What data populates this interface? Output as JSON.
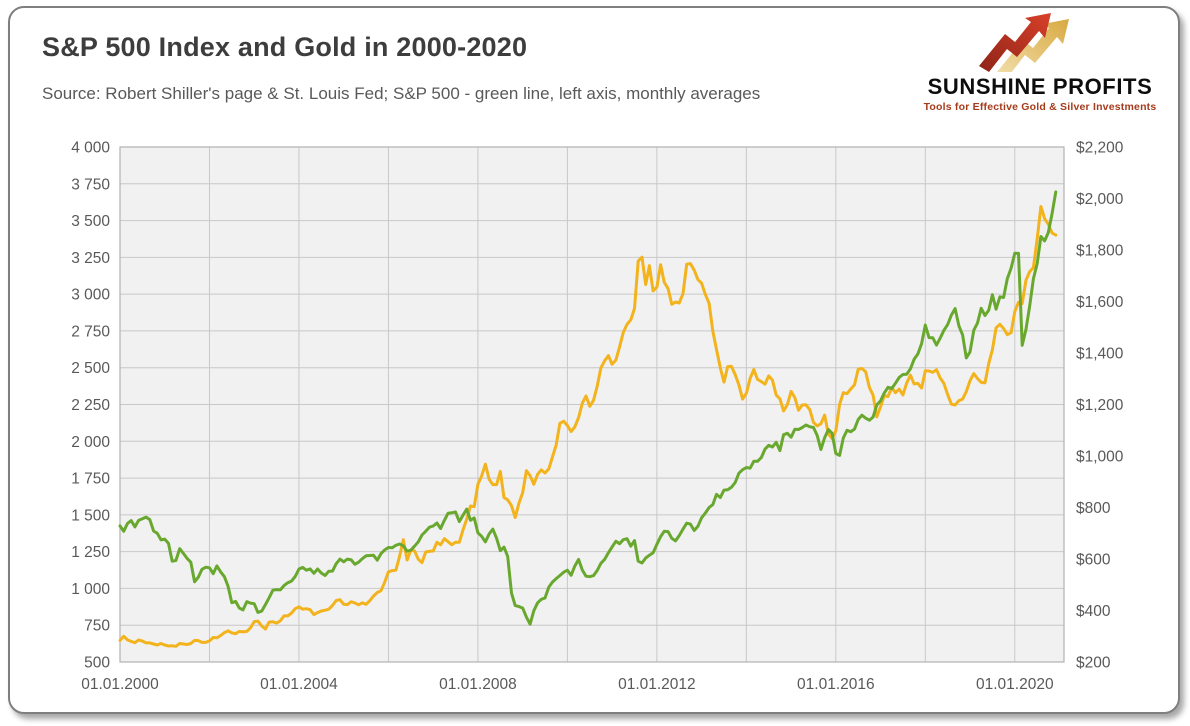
{
  "header": {
    "title": "S&P 500 Index and Gold in 2000-2020",
    "subtitle": "Source: Robert Shiller's page & St. Louis Fed; S&P 500 - green line, left axis, monthly averages"
  },
  "logo": {
    "brand": "SUNSHINE PROFITS",
    "tagline": "Tools for Effective Gold & Silver Investments",
    "arrow_red": "#c2331f",
    "arrow_gold_light": "#f2dfae",
    "arrow_gold_dark": "#d9a940"
  },
  "chart_data": {
    "type": "line",
    "title": "S&P 500 Index and Gold in 2000-2020",
    "legend": "none",
    "grid": true,
    "plot_bg": "#f1f1f1",
    "grid_color": "#c8c8c8",
    "plot_border_color": "#b2b2b2",
    "axis_text_color": "#595959",
    "x_axis": {
      "min_year": 2000,
      "max_year": 2021.1,
      "tick_years": [
        2000,
        2004,
        2008,
        2012,
        2016,
        2020
      ],
      "tick_labels": [
        "01.01.2000",
        "01.01.2004",
        "01.01.2008",
        "01.01.2012",
        "01.01.2016",
        "01.01.2020"
      ],
      "gridline_start_year": 2000,
      "gridline_every_years": 2,
      "gridline_end_year": 2020
    },
    "left_axis": {
      "min": 500,
      "max": 4000,
      "tick_step": 250,
      "tick_labels": [
        "4 000",
        "3 750",
        "3 500",
        "3 250",
        "3 000",
        "2 750",
        "2 500",
        "2 250",
        "2 000",
        "1 750",
        "1 500",
        "1 250",
        "1 000",
        "750",
        "500"
      ]
    },
    "right_axis": {
      "min": 200,
      "max": 2200,
      "tick_step": 200,
      "tick_labels": [
        "$2,200",
        "$2,000",
        "$1,800",
        "$1,600",
        "$1,400",
        "$1,200",
        "$1,000",
        "$800",
        "$600",
        "$400",
        "$200"
      ]
    },
    "start_year": 2000,
    "frequency": "monthly",
    "series": [
      {
        "name": "Gold",
        "axis": "right",
        "color": "#f2b31c",
        "values": [
          284,
          300,
          286,
          280,
          275,
          286,
          281,
          274,
          274,
          270,
          266,
          272,
          266,
          262,
          263,
          261,
          272,
          270,
          268,
          272,
          284,
          283,
          276,
          276,
          282,
          295,
          294,
          303,
          314,
          321,
          313,
          310,
          319,
          317,
          319,
          333,
          357,
          359,
          340,
          328,
          355,
          356,
          351,
          360,
          379,
          379,
          390,
          407,
          414,
          405,
          407,
          403,
          384,
          392,
          398,
          401,
          405,
          420,
          439,
          442,
          424,
          423,
          434,
          429,
          422,
          430,
          424,
          438,
          456,
          470,
          477,
          510,
          550,
          555,
          557,
          611,
          675,
          596,
          634,
          632,
          599,
          586,
          627,
          630,
          631,
          665,
          655,
          679,
          667,
          655,
          665,
          665,
          713,
          754,
          806,
          803,
          890,
          922,
          968,
          910,
          889,
          889,
          940,
          839,
          830,
          807,
          761,
          816,
          858,
          943,
          924,
          890,
          929,
          946,
          934,
          950,
          997,
          1043,
          1127,
          1135,
          1118,
          1095,
          1113,
          1149,
          1205,
          1233,
          1193,
          1216,
          1271,
          1342,
          1370,
          1390,
          1356,
          1373,
          1424,
          1480,
          1511,
          1529,
          1573,
          1757,
          1772,
          1666,
          1739,
          1641,
          1656,
          1743,
          1674,
          1650,
          1589,
          1598,
          1594,
          1630,
          1745,
          1747,
          1722,
          1685,
          1671,
          1628,
          1593,
          1485,
          1414,
          1343,
          1287,
          1347,
          1348,
          1316,
          1276,
          1221,
          1244,
          1301,
          1336,
          1298,
          1289,
          1279,
          1311,
          1295,
          1237,
          1222,
          1175,
          1200,
          1251,
          1227,
          1178,
          1198,
          1199,
          1181,
          1130,
          1117,
          1125,
          1159,
          1086,
          1068,
          1097,
          1200,
          1246,
          1242,
          1260,
          1276,
          1337,
          1340,
          1327,
          1266,
          1236,
          1152,
          1192,
          1234,
          1231,
          1266,
          1246,
          1260,
          1237,
          1283,
          1314,
          1280,
          1282,
          1264,
          1331,
          1330,
          1325,
          1335,
          1303,
          1282,
          1238,
          1201,
          1198,
          1215,
          1221,
          1250,
          1292,
          1320,
          1301,
          1286,
          1284,
          1359,
          1413,
          1498,
          1511,
          1495,
          1471,
          1479,
          1561,
          1597,
          1592,
          1683,
          1716,
          1732,
          1843,
          1969,
          1922,
          1900,
          1866,
          1858
        ]
      },
      {
        "name": "S&P 500",
        "axis": "left",
        "color": "#69a82f",
        "values": [
          1425,
          1388,
          1442,
          1461,
          1418,
          1462,
          1473,
          1485,
          1468,
          1390,
          1375,
          1330,
          1335,
          1306,
          1185,
          1190,
          1270,
          1238,
          1204,
          1178,
          1045,
          1076,
          1130,
          1144,
          1140,
          1100,
          1153,
          1112,
          1080,
          1014,
          903,
          912,
          867,
          854,
          910,
          900,
          896,
          837,
          846,
          890,
          936,
          988,
          992,
          990,
          1019,
          1039,
          1050,
          1081,
          1132,
          1143,
          1124,
          1133,
          1103,
          1132,
          1105,
          1088,
          1117,
          1118,
          1168,
          1199,
          1181,
          1199,
          1194,
          1164,
          1178,
          1202,
          1222,
          1224,
          1225,
          1192,
          1237,
          1262,
          1278,
          1276,
          1293,
          1302,
          1290,
          1253,
          1260,
          1287,
          1317,
          1363,
          1388,
          1416,
          1424,
          1445,
          1407,
          1463,
          1511,
          1514,
          1520,
          1454,
          1497,
          1539,
          1463,
          1479,
          1378,
          1354,
          1316,
          1370,
          1403,
          1341,
          1257,
          1281,
          1217,
          968,
          883,
          877,
          866,
          805,
          757,
          848,
          902,
          926,
          935,
          1009,
          1044,
          1067,
          1088,
          1110,
          1124,
          1089,
          1152,
          1197,
          1125,
          1083,
          1080,
          1087,
          1122,
          1171,
          1198,
          1242,
          1282,
          1321,
          1304,
          1331,
          1338,
          1287,
          1325,
          1185,
          1173,
          1207,
          1226,
          1243,
          1300,
          1352,
          1389,
          1386,
          1341,
          1323,
          1359,
          1403,
          1443,
          1437,
          1394,
          1422,
          1480,
          1512,
          1550,
          1570,
          1639,
          1618,
          1668,
          1670,
          1687,
          1720,
          1783,
          1807,
          1822,
          1817,
          1864,
          1864,
          1889,
          1947,
          1973,
          1961,
          1993,
          1937,
          2045,
          2054,
          2028,
          2082,
          2080,
          2094,
          2111,
          2099,
          2094,
          2039,
          1944,
          2024,
          2080,
          2054,
          1918,
          1904,
          2022,
          2075,
          2065,
          2083,
          2148,
          2177,
          2157,
          2143,
          2165,
          2247,
          2275,
          2329,
          2367,
          2359,
          2395,
          2434,
          2454,
          2456,
          2492,
          2557,
          2594,
          2664,
          2790,
          2705,
          2703,
          2654,
          2701,
          2754,
          2794,
          2858,
          2902,
          2785,
          2723,
          2567,
          2607,
          2755,
          2804,
          2904,
          2855,
          2890,
          2996,
          2898,
          2982,
          2977,
          3105,
          3177,
          3278,
          3277,
          2652,
          2762,
          2920,
          3105,
          3208,
          3392,
          3362,
          3418,
          3549,
          3695
        ]
      }
    ]
  }
}
